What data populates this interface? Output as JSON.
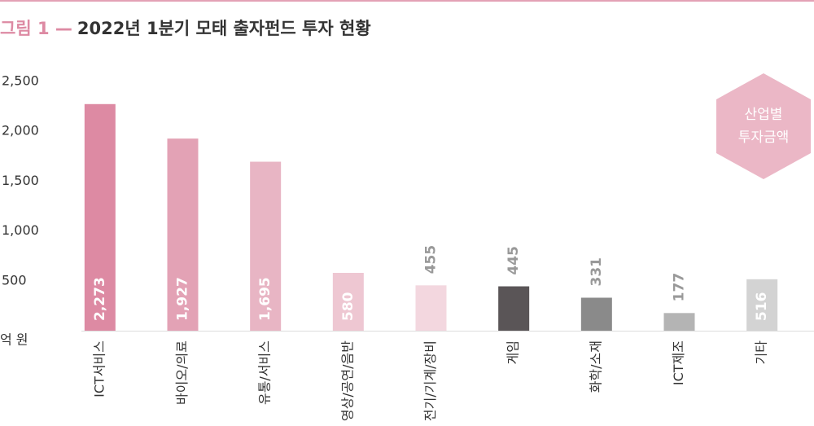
{
  "chart_data": {
    "type": "bar",
    "figure_label": "그림 1 —",
    "title": "2022년 1분기 모태 출자펀드 투자 현황",
    "y_unit": "억 원",
    "badge": [
      "산업별",
      "투자금액"
    ],
    "categories": [
      "ICT서비스",
      "바이오/의료",
      "유통/서비스",
      "영상/공연/음반",
      "전기/기계/장비",
      "게임",
      "화학/소재",
      "ICT제조",
      "기타"
    ],
    "values": [
      2273,
      1927,
      1695,
      580,
      455,
      445,
      331,
      177,
      516
    ],
    "value_labels": [
      "2,273",
      "1,927",
      "1,695",
      "580",
      "455",
      "445",
      "331",
      "177",
      "516"
    ],
    "colors": [
      "#dd8aa3",
      "#e3a2b5",
      "#e8b5c4",
      "#eec7d2",
      "#f3d7df",
      "#5a5557",
      "#8a8a8a",
      "#b4b4b4",
      "#d3d3d3"
    ],
    "ylim": [
      0,
      2500
    ],
    "yticks": [
      {
        "value": 500,
        "label": "500"
      },
      {
        "value": 1000,
        "label": "1,000"
      },
      {
        "value": 1500,
        "label": "1,500"
      },
      {
        "value": 2000,
        "label": "2,000"
      },
      {
        "value": 2500,
        "label": "2,500"
      }
    ],
    "grid": false
  }
}
